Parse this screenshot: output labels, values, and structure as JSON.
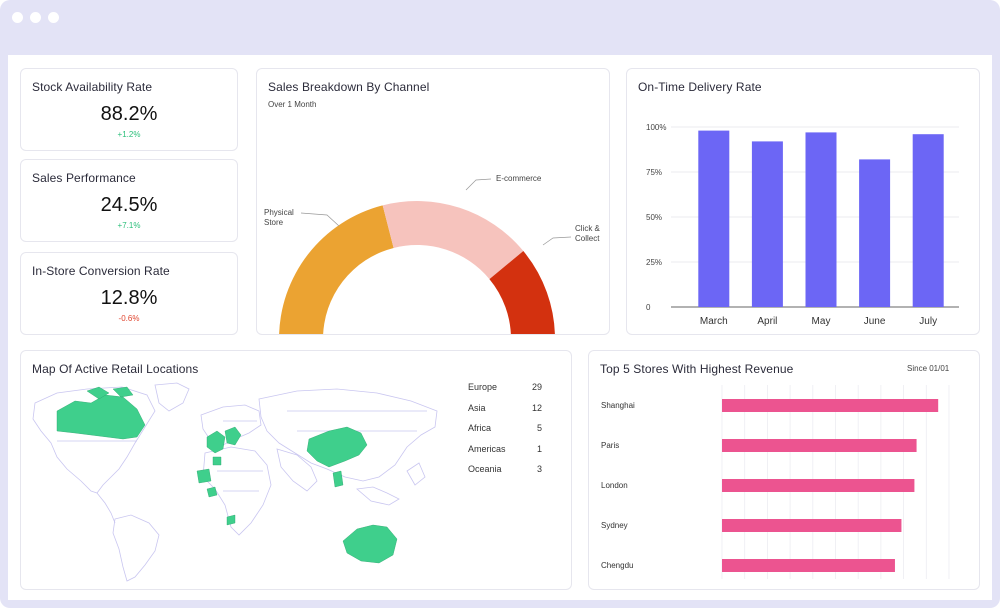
{
  "kpis": [
    {
      "title": "Stock Availability Rate",
      "value": "88.2%",
      "delta": "+1.2%",
      "trend": "up"
    },
    {
      "title": "Sales Performance",
      "value": "24.5%",
      "delta": "+7.1%",
      "trend": "up"
    },
    {
      "title": "In-Store Conversion Rate",
      "value": "12.8%",
      "delta": "-0.6%",
      "trend": "down"
    }
  ],
  "sales_breakdown": {
    "title": "Sales Breakdown By Channel",
    "subtitle": "Over 1 Month",
    "labels": {
      "physical": [
        "Physical",
        "Store"
      ],
      "ecommerce": [
        "E-commerce"
      ],
      "click": [
        "Click &",
        "Collect"
      ]
    }
  },
  "delivery": {
    "title": "On-Time Delivery Rate"
  },
  "map": {
    "title": "Map Of Active Retail Locations",
    "regions": [
      {
        "name": "Europe",
        "count": "29"
      },
      {
        "name": "Asia",
        "count": "12"
      },
      {
        "name": "Africa",
        "count": "5"
      },
      {
        "name": "Americas",
        "count": "1"
      },
      {
        "name": "Oceania",
        "count": "3"
      }
    ]
  },
  "stores": {
    "title": "Top 5 Stores With Highest Revenue",
    "since": "Since 01/01"
  },
  "colors": {
    "accent_bar": "#6c66f5",
    "store_bar": "#ec5490",
    "physical": "#eba332",
    "ecommerce": "#f6c3bd",
    "click": "#d3310f",
    "map_fill": "#3fcf8c",
    "frame": "#e3e3f6"
  },
  "chart_data": [
    {
      "type": "pie",
      "title": "Sales Breakdown By Channel",
      "categories": [
        "Physical Store",
        "E-commerce",
        "Click & Collect"
      ],
      "values": [
        42,
        36,
        22
      ]
    },
    {
      "type": "bar",
      "title": "On-Time Delivery Rate",
      "categories": [
        "March",
        "April",
        "May",
        "June",
        "July"
      ],
      "values": [
        98,
        92,
        97,
        82,
        96
      ],
      "ylim": [
        0,
        100
      ],
      "yticks": [
        "0",
        "25%",
        "50%",
        "75%",
        "100%"
      ],
      "grid": true
    },
    {
      "type": "bar",
      "orientation": "horizontal",
      "title": "Top 5 Stores With Highest Revenue",
      "categories": [
        "Shanghai",
        "Paris",
        "London",
        "Sydney",
        "Chengdu"
      ],
      "values": [
        100,
        90,
        89,
        83,
        80
      ],
      "xlim": [
        0,
        105
      ]
    }
  ]
}
